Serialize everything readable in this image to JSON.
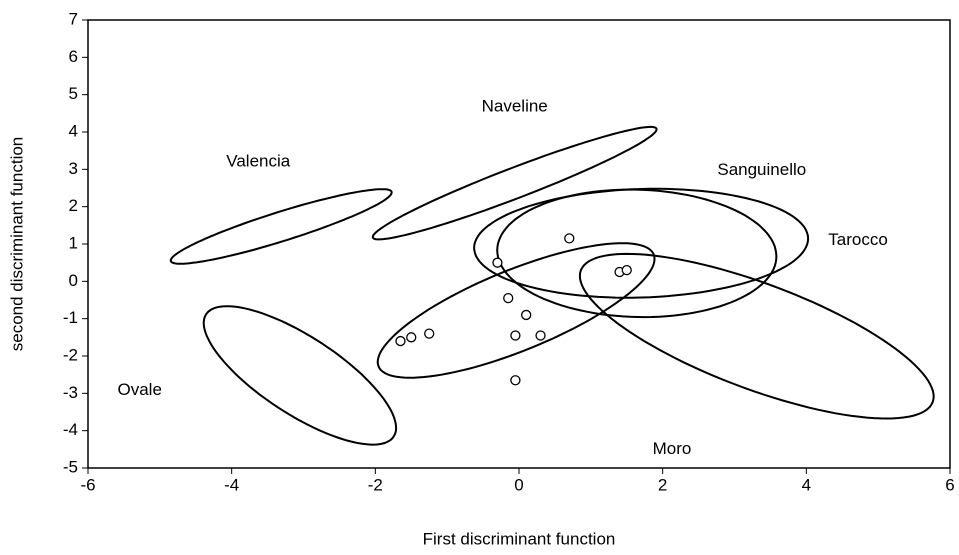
{
  "chart_data": {
    "type": "scatter",
    "xlabel": "First discriminant function",
    "ylabel": "second discriminant function",
    "xlim": [
      -6,
      6
    ],
    "ylim": [
      -5,
      7
    ],
    "xticks": [
      -6,
      -4,
      -2,
      0,
      2,
      4,
      6
    ],
    "yticks": [
      -5,
      -4,
      -3,
      -2,
      -1,
      0,
      1,
      2,
      3,
      4,
      5,
      6,
      7
    ],
    "grid": false,
    "color": "#000000",
    "x": [
      -1.65,
      -1.5,
      -1.25,
      -0.3,
      -0.15,
      0.1,
      -0.05,
      0.3,
      -0.05,
      0.7,
      1.4,
      1.5
    ],
    "values": [
      -1.6,
      -1.5,
      -1.4,
      0.5,
      -0.45,
      -0.9,
      -1.45,
      -1.45,
      -2.65,
      1.15,
      0.25,
      0.3
    ],
    "ellipses": [
      {
        "name": "Valencia",
        "cx": -3.31,
        "cy": 1.47,
        "rx": 1.8,
        "ry": 0.35,
        "angle": 32,
        "label_x": -3.63,
        "label_y": 3.19
      },
      {
        "name": "Naveline",
        "cx": -0.06,
        "cy": 2.63,
        "rx": 2.46,
        "ry": 0.35,
        "angle": 37,
        "label_x": -0.06,
        "label_y": 4.67
      },
      {
        "name": "Sanguinello",
        "cx": 1.7,
        "cy": 1.02,
        "rx": 2.33,
        "ry": 1.45,
        "angle": 5,
        "label_x": 3.38,
        "label_y": 2.97
      },
      {
        "name": "Tarocco",
        "cx": 1.64,
        "cy": 0.75,
        "rx": 1.95,
        "ry": 1.7,
        "angle": -10,
        "label_x": 4.72,
        "label_y": 1.1
      },
      {
        "name": "Moro",
        "cx": 3.31,
        "cy": -1.47,
        "rx": 3.08,
        "ry": 1.2,
        "angle": -40.7,
        "label_x": 2.13,
        "label_y": -4.5
      },
      {
        "name": "Ovale",
        "cx": -3.05,
        "cy": -2.52,
        "rx": 2.16,
        "ry": 0.75,
        "angle": -56.8,
        "label_x": -5.28,
        "label_y": -2.92
      }
    ],
    "extra_ellipses": [
      {
        "cx": -0.04,
        "cy": -0.78,
        "rx": 2.48,
        "ry": 0.9,
        "angle": 42.5
      }
    ]
  }
}
